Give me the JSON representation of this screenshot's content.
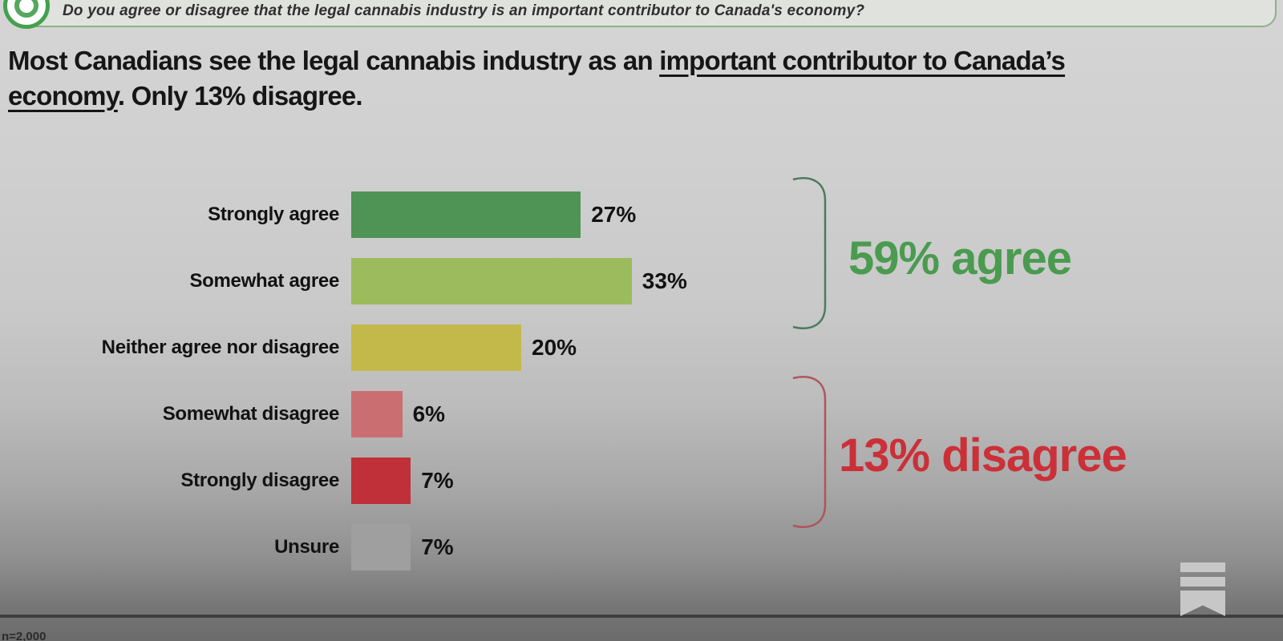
{
  "question_bar": {
    "question": "Do you agree or disagree that the legal cannabis industry is an important contributor to Canada's economy?",
    "badge_icon": "question-number-badge"
  },
  "title": {
    "pre": "Most Canadians see the legal cannabis industry as an ",
    "underlined": "important contributor to Canada’s economy",
    "post": ". Only 13% disagree."
  },
  "chart_data": {
    "type": "bar",
    "orientation": "horizontal",
    "title": "Most Canadians see the legal cannabis industry as an important contributor to Canada’s economy. Only 13% disagree.",
    "categories": [
      "Strongly agree",
      "Somewhat agree",
      "Neither agree nor disagree",
      "Somewhat disagree",
      "Strongly disagree",
      "Unsure"
    ],
    "values": [
      27,
      33,
      20,
      6,
      7,
      7
    ],
    "value_labels": [
      "27%",
      "33%",
      "20%",
      "6%",
      "7%",
      "7%"
    ],
    "colors": [
      "#4f9355",
      "#9cbb5c",
      "#c3b94b",
      "#cb6e71",
      "#c03038",
      "#9f9f9f"
    ],
    "xlim": [
      0,
      38
    ],
    "grid": false,
    "legend": false,
    "annotations": [
      {
        "label": "59% agree",
        "color": "#4a9b50",
        "bracket_color": "#4f7a5e",
        "covers": [
          "Strongly agree",
          "Somewhat agree"
        ]
      },
      {
        "label": "13% disagree",
        "color": "#cb3038",
        "bracket_color": "#b0545b",
        "covers": [
          "Somewhat disagree",
          "Strongly disagree"
        ]
      }
    ]
  },
  "footer": {
    "note_fragment": "n=2,000"
  },
  "branding": {
    "logo": "substack-logo"
  }
}
